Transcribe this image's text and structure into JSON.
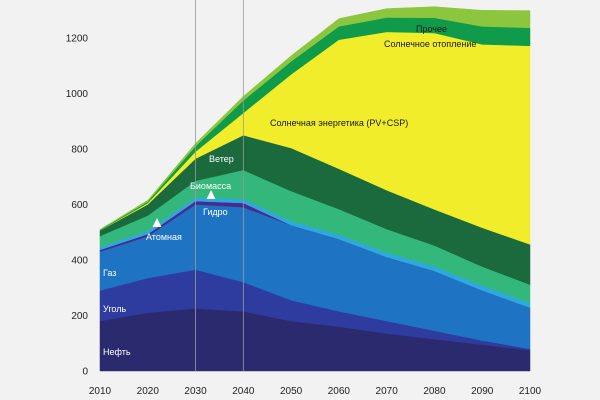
{
  "chart_data": {
    "type": "area",
    "x": [
      2010,
      2020,
      2030,
      2040,
      2050,
      2060,
      2070,
      2080,
      2090,
      2100
    ],
    "ylim": [
      0,
      1300
    ],
    "xlim": [
      2010,
      2100
    ],
    "yticks": [
      0,
      200,
      400,
      600,
      800,
      1000,
      1200
    ],
    "grid": "vertical at 2030 and 2040",
    "series": [
      {
        "name": "Нефть",
        "color": "#2b2a6e",
        "values": [
          180,
          210,
          225,
          215,
          180,
          160,
          135,
          115,
          95,
          75
        ]
      },
      {
        "name": "Уголь",
        "color": "#2e3ca0",
        "values": [
          110,
          125,
          140,
          105,
          75,
          55,
          45,
          30,
          15,
          5
        ]
      },
      {
        "name": "Газ",
        "color": "#1e73c3",
        "values": [
          140,
          150,
          235,
          270,
          270,
          260,
          230,
          215,
          180,
          148
        ]
      },
      {
        "name": "Атомная",
        "color": "#4a2a8a",
        "values": [
          6,
          8,
          12,
          15,
          0,
          0,
          0,
          0,
          0,
          0
        ]
      },
      {
        "name": "Гидро",
        "color": "#2ea9e0",
        "values": [
          10,
          12,
          13,
          14,
          15,
          16,
          16,
          17,
          18,
          18
        ]
      },
      {
        "name": "Биомасса",
        "color": "#34b77a",
        "values": [
          40,
          55,
          60,
          105,
          108,
          92,
          85,
          75,
          68,
          65
        ]
      },
      {
        "name": "Ветер",
        "color": "#1a6a3e",
        "values": [
          20,
          40,
          80,
          125,
          155,
          145,
          140,
          130,
          140,
          145
        ]
      },
      {
        "name": "Солнечная энергетика (PV+CSP)",
        "color": "#f2ed2a",
        "values": [
          0,
          5,
          25,
          80,
          265,
          465,
          570,
          635,
          660,
          715
        ]
      },
      {
        "name": "Солнечное отопление",
        "color": "#0f9b4a",
        "values": [
          2,
          5,
          20,
          45,
          47,
          48,
          52,
          55,
          65,
          65
        ]
      },
      {
        "name": "Прочее",
        "color": "#8cc63f",
        "values": [
          2,
          5,
          10,
          15,
          20,
          28,
          32,
          40,
          58,
          62
        ]
      }
    ],
    "labels": {
      "oil": "Нефть",
      "coal": "Уголь",
      "gas": "Газ",
      "nuclear": "Атомная",
      "hydro": "Гидро",
      "biomass": "Биомасса",
      "wind": "Ветер",
      "solar": "Солнечная энергетика (PV+CSP)",
      "solar_heat": "Солнечное отопление",
      "other": "Прочее"
    }
  }
}
